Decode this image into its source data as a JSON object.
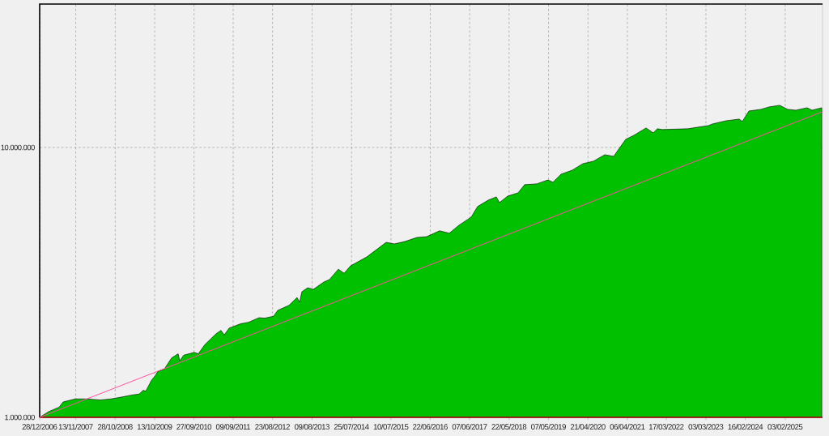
{
  "chart_data": {
    "type": "area",
    "x": [
      "2006-12-28",
      "2007-03-17",
      "2007-06-18",
      "2007-07-24",
      "2007-11-09",
      "2008-02-17",
      "2008-06-19",
      "2008-09-20",
      "2008-12-29",
      "2009-03-26",
      "2009-05-29",
      "2009-07-04",
      "2009-07-26",
      "2009-09-14",
      "2009-10-20",
      "2009-11-10",
      "2010-01-07",
      "2010-03-12",
      "2010-05-09",
      "2010-05-23",
      "2010-06-28",
      "2010-09-29",
      "2010-11-04",
      "2011-01-01",
      "2011-04-11",
      "2011-05-24",
      "2011-06-22",
      "2011-08-04",
      "2011-11-13",
      "2012-01-23",
      "2012-04-26",
      "2012-06-15",
      "2012-09-02",
      "2012-10-08",
      "2013-01-16",
      "2013-03-29",
      "2013-04-20",
      "2013-05-11",
      "2013-07-01",
      "2013-08-20",
      "2013-11-21",
      "2014-01-10",
      "2014-03-30",
      "2014-05-20",
      "2014-07-16",
      "2014-12-07",
      "2015-05-28",
      "2015-08-08",
      "2015-11-09",
      "2016-02-25",
      "2016-05-21",
      "2016-09-13",
      "2016-12-08",
      "2017-03-04",
      "2017-06-20",
      "2017-08-16",
      "2017-11-18",
      "2018-01-29",
      "2018-02-26",
      "2018-05-09",
      "2018-08-10",
      "2018-10-07",
      "2019-01-23",
      "2019-05-03",
      "2019-06-15",
      "2019-08-26",
      "2019-12-04",
      "2020-03-07",
      "2020-06-08",
      "2020-09-17",
      "2020-12-05",
      "2021-01-24",
      "2021-03-22",
      "2021-06-02",
      "2021-09-18",
      "2021-11-21",
      "2021-12-27",
      "2022-02-08",
      "2022-09-26",
      "2022-12-21",
      "2023-03-25",
      "2023-04-30",
      "2023-08-30",
      "2023-12-23",
      "2024-01-20",
      "2024-03-18",
      "2024-07-03",
      "2024-09-13",
      "2024-12-16",
      "2025-02-25",
      "2025-05-08",
      "2025-08-17",
      "2025-09-29",
      "2025-12-24"
    ],
    "series": [
      {
        "color": "#00c000",
        "values": [
          1000000,
          1050000,
          1090000,
          1140000,
          1170000,
          1170000,
          1160000,
          1170000,
          1190000,
          1210000,
          1220000,
          1260000,
          1250000,
          1370000,
          1430000,
          1480000,
          1510000,
          1660000,
          1720000,
          1620000,
          1700000,
          1740000,
          1720000,
          1860000,
          2040000,
          2100000,
          2020000,
          2140000,
          2220000,
          2250000,
          2340000,
          2330000,
          2370000,
          2490000,
          2600000,
          2780000,
          2670000,
          2920000,
          3020000,
          2980000,
          3170000,
          3240000,
          3540000,
          3420000,
          3640000,
          3930000,
          4450000,
          4390000,
          4480000,
          4640000,
          4670000,
          4910000,
          4810000,
          5150000,
          5520000,
          6040000,
          6380000,
          6560000,
          6250000,
          6600000,
          6790000,
          7280000,
          7330000,
          7580000,
          7430000,
          7960000,
          8240000,
          8710000,
          8890000,
          9400000,
          9270000,
          9930000,
          10720000,
          11090000,
          11810000,
          11330000,
          11730000,
          11650000,
          11730000,
          11890000,
          12050000,
          12220000,
          12560000,
          12740000,
          12480000,
          13650000,
          13840000,
          14130000,
          14330000,
          13840000,
          13740000,
          14030000,
          13740000,
          14030000
        ]
      },
      {
        "type": "line",
        "color": "#ff4f9f",
        "x": [
          "2006-12-28",
          "2025-12-31"
        ],
        "values": [
          1000000,
          13560000
        ]
      }
    ],
    "log": "y",
    "grid": true,
    "xlim": [
      "2006-12-28",
      "2025-12-31"
    ],
    "ylim": [
      1000000,
      34000000
    ],
    "xticks": [
      {
        "value": "2006-12-28",
        "label": "28/12/2006"
      },
      {
        "value": "2007-11-13",
        "label": "13/11/2007"
      },
      {
        "value": "2008-10-28",
        "label": "28/10/2008"
      },
      {
        "value": "2009-10-13",
        "label": "13/10/2009"
      },
      {
        "value": "2010-09-27",
        "label": "27/09/2010"
      },
      {
        "value": "2011-09-09",
        "label": "09/09/2011"
      },
      {
        "value": "2012-08-23",
        "label": "23/08/2012"
      },
      {
        "value": "2013-08-09",
        "label": "09/08/2013"
      },
      {
        "value": "2014-07-25",
        "label": "25/07/2014"
      },
      {
        "value": "2015-07-10",
        "label": "10/07/2015"
      },
      {
        "value": "2016-06-22",
        "label": "22/06/2016"
      },
      {
        "value": "2017-06-07",
        "label": "07/06/2017"
      },
      {
        "value": "2018-05-22",
        "label": "22/05/2018"
      },
      {
        "value": "2019-05-07",
        "label": "07/05/2019"
      },
      {
        "value": "2020-04-21",
        "label": "21/04/2020"
      },
      {
        "value": "2021-04-06",
        "label": "06/04/2021"
      },
      {
        "value": "2022-03-17",
        "label": "17/03/2022"
      },
      {
        "value": "2023-03-03",
        "label": "03/03/2023"
      },
      {
        "value": "2024-02-16",
        "label": "16/02/2024"
      },
      {
        "value": "2025-02-03",
        "label": "03/02/2025"
      }
    ],
    "yticks": [
      {
        "value": 1000000,
        "label": "1.000.000"
      },
      {
        "value": 10000000,
        "label": "10.000.000"
      }
    ]
  }
}
